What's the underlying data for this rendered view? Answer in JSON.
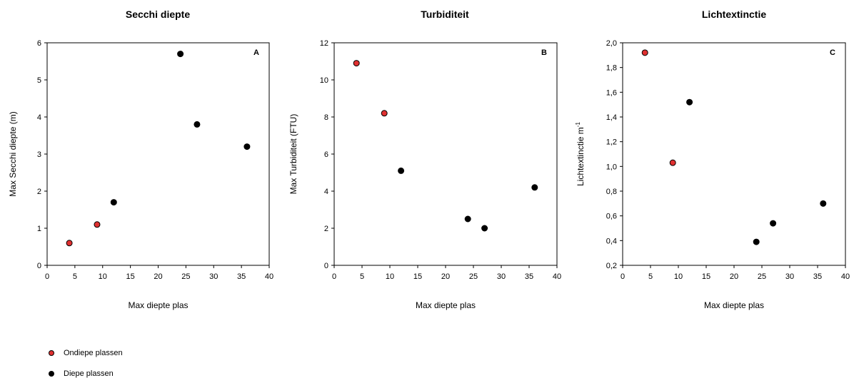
{
  "colors": {
    "shallow": "#e03030",
    "deep": "#000000",
    "axis": "#000000"
  },
  "legend": {
    "placement": "bottom-left",
    "items": [
      {
        "label": "Ondiepe plassen",
        "color": "#e03030"
      },
      {
        "label": "Diepe plassen",
        "color": "#000000"
      }
    ]
  },
  "chart_data": [
    {
      "type": "scatter",
      "title": "Secchi diepte",
      "panel_letter": "A",
      "xlabel": "Max diepte plas",
      "ylabel": "Max Secchi diepte (m)",
      "xlim": [
        0,
        40
      ],
      "ylim": [
        0,
        6
      ],
      "xticks": [
        0,
        5,
        10,
        15,
        20,
        25,
        30,
        35,
        40
      ],
      "xtick_labels": [
        "0",
        "5",
        "10",
        "15",
        "20",
        "25",
        "30",
        "35",
        "40"
      ],
      "yticks": [
        0,
        1,
        2,
        3,
        4,
        5,
        6
      ],
      "ytick_labels": [
        "0",
        "1",
        "2",
        "3",
        "4",
        "5",
        "6"
      ],
      "grid": false,
      "series": [
        {
          "name": "Ondiepe plassen",
          "color": "#e03030",
          "x": [
            4,
            9
          ],
          "y": [
            0.6,
            1.1
          ]
        },
        {
          "name": "Diepe plassen",
          "color": "#000000",
          "x": [
            12,
            24,
            27,
            36
          ],
          "y": [
            1.7,
            5.7,
            3.8,
            3.2
          ]
        }
      ]
    },
    {
      "type": "scatter",
      "title": "Turbiditeit",
      "panel_letter": "B",
      "xlabel": "Max diepte plas",
      "ylabel": "Max Turbiditeit (FTU)",
      "xlim": [
        0,
        40
      ],
      "ylim": [
        0,
        12
      ],
      "xticks": [
        0,
        5,
        10,
        15,
        20,
        25,
        30,
        35,
        40
      ],
      "xtick_labels": [
        "0",
        "5",
        "10",
        "15",
        "20",
        "25",
        "30",
        "35",
        "40"
      ],
      "yticks": [
        0,
        2,
        4,
        6,
        8,
        10,
        12
      ],
      "ytick_labels": [
        "0",
        "2",
        "4",
        "6",
        "8",
        "10",
        "12"
      ],
      "grid": false,
      "series": [
        {
          "name": "Ondiepe plassen",
          "color": "#e03030",
          "x": [
            4,
            9
          ],
          "y": [
            10.9,
            8.2
          ]
        },
        {
          "name": "Diepe plassen",
          "color": "#000000",
          "x": [
            12,
            24,
            27,
            36
          ],
          "y": [
            5.1,
            2.5,
            2.0,
            4.2
          ]
        }
      ]
    },
    {
      "type": "scatter",
      "title": "Lichtextinctie",
      "panel_letter": "C",
      "xlabel": "Max diepte plas",
      "ylabel": "Lichtextinctie m",
      "ylabel_superscript": "-1",
      "xlim": [
        0,
        40
      ],
      "ylim": [
        0.2,
        2.0
      ],
      "xticks": [
        0,
        5,
        10,
        15,
        20,
        25,
        30,
        35,
        40
      ],
      "xtick_labels": [
        "0",
        "5",
        "10",
        "15",
        "20",
        "25",
        "30",
        "35",
        "40"
      ],
      "yticks": [
        0.2,
        0.4,
        0.6,
        0.8,
        1.0,
        1.2,
        1.4,
        1.6,
        1.8,
        2.0
      ],
      "ytick_labels": [
        "0,2",
        "0,4",
        "0,6",
        "0,8",
        "1,0",
        "1,2",
        "1,4",
        "1,6",
        "1,8",
        "2,0"
      ],
      "grid": false,
      "series": [
        {
          "name": "Ondiepe plassen",
          "color": "#e03030",
          "x": [
            4,
            9
          ],
          "y": [
            1.92,
            1.03
          ]
        },
        {
          "name": "Diepe plassen",
          "color": "#000000",
          "x": [
            12,
            24,
            27,
            36
          ],
          "y": [
            1.52,
            0.39,
            0.54,
            0.7
          ]
        }
      ]
    }
  ]
}
